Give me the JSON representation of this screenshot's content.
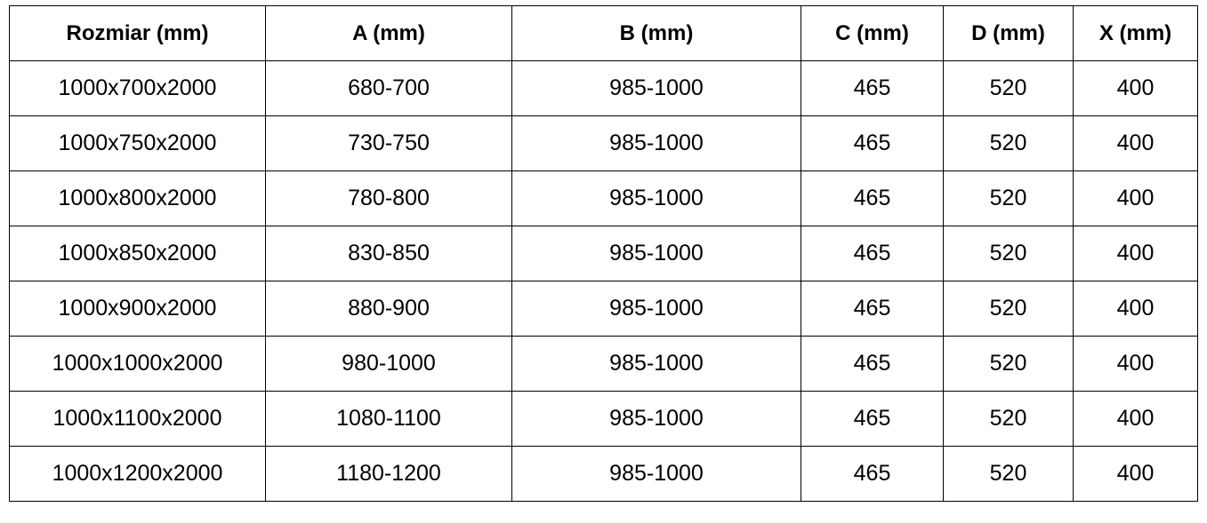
{
  "table": {
    "headers": [
      "Rozmiar (mm)",
      "A (mm)",
      "B (mm)",
      "C (mm)",
      "D (mm)",
      "X (mm)"
    ],
    "rows": [
      [
        "1000x700x2000",
        "680-700",
        "985-1000",
        "465",
        "520",
        "400"
      ],
      [
        "1000x750x2000",
        "730-750",
        "985-1000",
        "465",
        "520",
        "400"
      ],
      [
        "1000x800x2000",
        "780-800",
        "985-1000",
        "465",
        "520",
        "400"
      ],
      [
        "1000x850x2000",
        "830-850",
        "985-1000",
        "465",
        "520",
        "400"
      ],
      [
        "1000x900x2000",
        "880-900",
        "985-1000",
        "465",
        "520",
        "400"
      ],
      [
        "1000x1000x2000",
        "980-1000",
        "985-1000",
        "465",
        "520",
        "400"
      ],
      [
        "1000x1100x2000",
        "1080-1100",
        "985-1000",
        "465",
        "520",
        "400"
      ],
      [
        "1000x1200x2000",
        "1180-1200",
        "985-1000",
        "465",
        "520",
        "400"
      ]
    ]
  }
}
